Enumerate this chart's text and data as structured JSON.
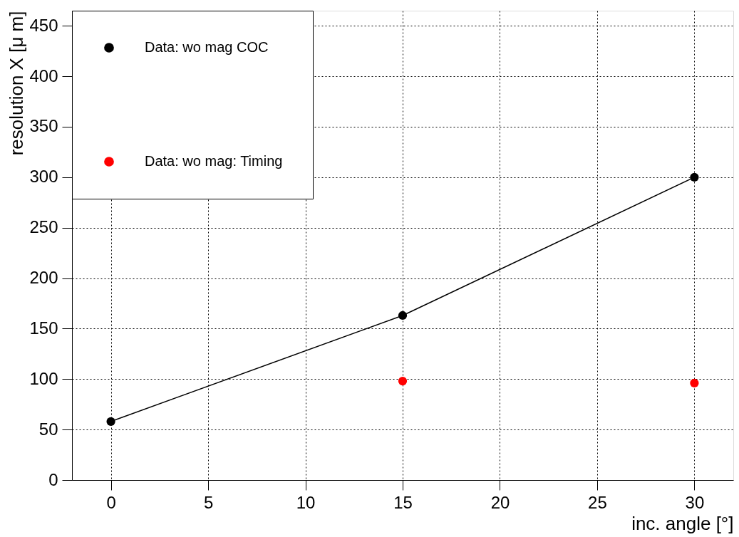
{
  "chart_data": {
    "type": "scatter",
    "xlabel": "inc. angle [°]",
    "ylabel": "resolution X [μ m]",
    "xlim": [
      -2,
      32
    ],
    "xticks": [
      0,
      5,
      10,
      15,
      20,
      25,
      30
    ],
    "ylim": [
      0,
      465
    ],
    "yticks": [
      0,
      50,
      100,
      150,
      200,
      250,
      300,
      350,
      400,
      450
    ],
    "grid": true,
    "legend": "top left",
    "marker": "circle",
    "series": [
      {
        "name": "Data: wo mag COC",
        "type": "line",
        "color": "#000000",
        "x": [
          0,
          15,
          30
        ],
        "values": [
          58,
          163,
          300
        ]
      },
      {
        "name": "Data: wo mag: Timing",
        "type": "scatter",
        "color": "#ff0000",
        "x": [
          15,
          30
        ],
        "values": [
          98,
          96
        ]
      }
    ]
  }
}
